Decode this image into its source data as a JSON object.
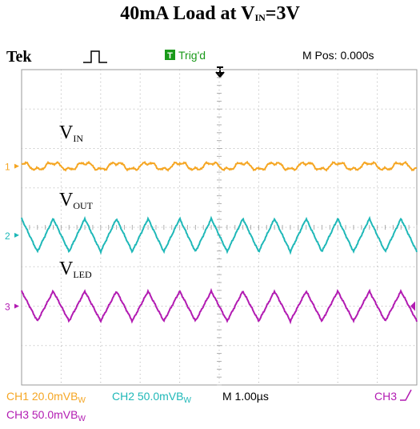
{
  "chart_data": {
    "type": "line",
    "title": "40mA Load at V",
    "title_sub": "IN",
    "title_suffix": "=3V",
    "header": {
      "brand": "Tek",
      "trigger_status": "Trig'd",
      "trigger_badge": "T",
      "m_pos": "M Pos: 0.000s"
    },
    "series": [
      {
        "name": "V",
        "name_sub": "IN",
        "channel_marker": "1",
        "color": "#f5a623",
        "waveform": "ripple",
        "period_div": 0.8,
        "amplitude_div": 0.12
      },
      {
        "name": "V",
        "name_sub": "OUT",
        "channel_marker": "2",
        "color": "#1fb8b8",
        "waveform": "triangle",
        "period_div": 0.8,
        "amplitude_div": 0.42
      },
      {
        "name": "V",
        "name_sub": "LED",
        "channel_marker": "3",
        "color": "#b21bb2",
        "waveform": "triangle",
        "period_div": 0.8,
        "amplitude_div": 0.38
      }
    ],
    "grid": {
      "divisions_x": 10,
      "divisions_y": 8,
      "visible": true
    },
    "footer": {
      "ch1": "CH1  20.0mVB",
      "ch1_sub": "W",
      "ch2": "CH2  50.0mVB",
      "ch2_sub": "W",
      "timebase": "M 1.00µs",
      "trigger_src": "CH3",
      "ch3": "CH3  50.0mVB",
      "ch3_sub": "W"
    }
  }
}
